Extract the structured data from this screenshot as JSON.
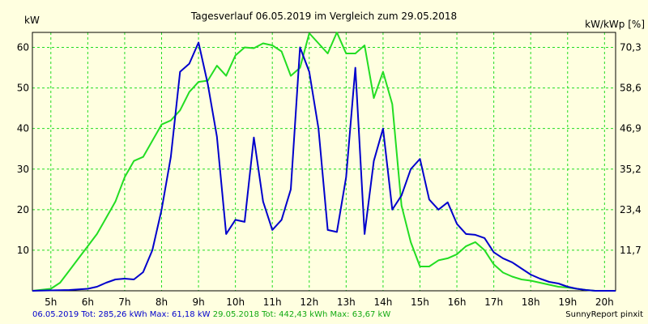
{
  "chart_data": {
    "type": "line",
    "title": "Tagesverlauf 06.05.2019 im Vergleich zum 29.05.2018",
    "ylabel_left": "kW",
    "ylabel_right": "kW/kWp [%]",
    "xlim": [
      4.5,
      20.3
    ],
    "ylim": [
      0,
      63.7
    ],
    "x_ticks": [
      {
        "x": 5,
        "label": "5h"
      },
      {
        "x": 6,
        "label": "6h"
      },
      {
        "x": 7,
        "label": "7h"
      },
      {
        "x": 8,
        "label": "8h"
      },
      {
        "x": 9,
        "label": "9h"
      },
      {
        "x": 10,
        "label": "10h"
      },
      {
        "x": 11,
        "label": "11h"
      },
      {
        "x": 12,
        "label": "12h"
      },
      {
        "x": 13,
        "label": "13h"
      },
      {
        "x": 14,
        "label": "14h"
      },
      {
        "x": 15,
        "label": "15h"
      },
      {
        "x": 16,
        "label": "16h"
      },
      {
        "x": 17,
        "label": "17h"
      },
      {
        "x": 18,
        "label": "18h"
      },
      {
        "x": 19,
        "label": "19h"
      },
      {
        "x": 20,
        "label": "20h"
      }
    ],
    "y_ticks_left": [
      {
        "y": 10,
        "label": "10"
      },
      {
        "y": 20,
        "label": "20"
      },
      {
        "y": 30,
        "label": "30"
      },
      {
        "y": 40,
        "label": "40"
      },
      {
        "y": 50,
        "label": "50"
      },
      {
        "y": 60,
        "label": "60"
      }
    ],
    "y_ticks_right": [
      {
        "y": 10,
        "label": "11,7"
      },
      {
        "y": 20,
        "label": "23,4"
      },
      {
        "y": 30,
        "label": "35,2"
      },
      {
        "y": 40,
        "label": "46,9"
      },
      {
        "y": 50,
        "label": "58,6"
      },
      {
        "y": 60,
        "label": "70,3"
      }
    ],
    "grid": true,
    "series": [
      {
        "name": "06.05.2019",
        "color": "#0000cc",
        "x": [
          4.5,
          5.0,
          5.5,
          6.0,
          6.25,
          6.5,
          6.75,
          7.0,
          7.25,
          7.5,
          7.75,
          8.0,
          8.25,
          8.5,
          8.75,
          9.0,
          9.25,
          9.5,
          9.75,
          10.0,
          10.25,
          10.5,
          10.75,
          11.0,
          11.25,
          11.5,
          11.75,
          12.0,
          12.25,
          12.5,
          12.75,
          13.0,
          13.25,
          13.5,
          13.75,
          14.0,
          14.25,
          14.5,
          14.75,
          15.0,
          15.25,
          15.5,
          15.75,
          16.0,
          16.25,
          16.5,
          16.75,
          17.0,
          17.25,
          17.5,
          17.75,
          18.0,
          18.25,
          18.5,
          18.75,
          19.0,
          19.25,
          19.5,
          19.75,
          20.0,
          20.3
        ],
        "y": [
          0,
          0.1,
          0.2,
          0.5,
          1,
          2,
          2.8,
          3,
          2.8,
          4.6,
          10,
          20,
          33,
          54,
          56,
          61.2,
          51,
          38,
          14,
          17.5,
          17,
          37.8,
          22,
          15,
          17.5,
          25,
          60,
          54,
          40,
          15,
          14.5,
          28,
          55,
          14,
          32,
          40,
          20,
          23.5,
          30,
          32.5,
          22.5,
          20,
          21.8,
          16.5,
          14,
          13.8,
          13,
          9.5,
          8,
          7,
          5.5,
          4,
          3,
          2.2,
          1.8,
          1,
          0.5,
          0.2,
          0,
          0,
          0
        ]
      },
      {
        "name": "29.05.2018",
        "color": "#22dd22",
        "x": [
          4.5,
          5.0,
          5.25,
          5.5,
          5.75,
          6.0,
          6.25,
          6.5,
          6.75,
          7.0,
          7.25,
          7.5,
          7.75,
          8.0,
          8.25,
          8.5,
          8.75,
          9.0,
          9.25,
          9.5,
          9.75,
          10.0,
          10.25,
          10.5,
          10.75,
          11.0,
          11.25,
          11.5,
          11.75,
          12.0,
          12.25,
          12.5,
          12.75,
          13.0,
          13.25,
          13.5,
          13.75,
          14.0,
          14.25,
          14.5,
          14.75,
          15.0,
          15.25,
          15.5,
          15.75,
          16.0,
          16.25,
          16.5,
          16.75,
          17.0,
          17.25,
          17.5,
          17.75,
          18.0,
          18.25,
          18.5,
          18.75,
          19.0,
          19.25,
          19.5,
          19.75,
          20.0,
          20.3
        ],
        "y": [
          0,
          0.5,
          2,
          5,
          8,
          11,
          14,
          18,
          22,
          28,
          32,
          33,
          37,
          41,
          42,
          44.5,
          49,
          51.5,
          51.8,
          55.5,
          53,
          58,
          60,
          59.8,
          61,
          60.5,
          59,
          53,
          55,
          63.5,
          61,
          58.5,
          63.7,
          58.5,
          58.5,
          60.5,
          47.5,
          54,
          46,
          21,
          12,
          6,
          6,
          7.5,
          8,
          9,
          11,
          12,
          10,
          6.5,
          4.5,
          3.5,
          2.8,
          2.5,
          2,
          1.5,
          1,
          0.8,
          0.5,
          0.2,
          0,
          0,
          0
        ]
      }
    ]
  },
  "footer": {
    "series1_text": "06.05.2019 Tot: 285,26 kWh Max: 61,18 kW",
    "series2_text": "29.05.2018 Tot: 442,43 kWh Max: 63,67 kW",
    "brand": "SunnyReport pinxit"
  }
}
